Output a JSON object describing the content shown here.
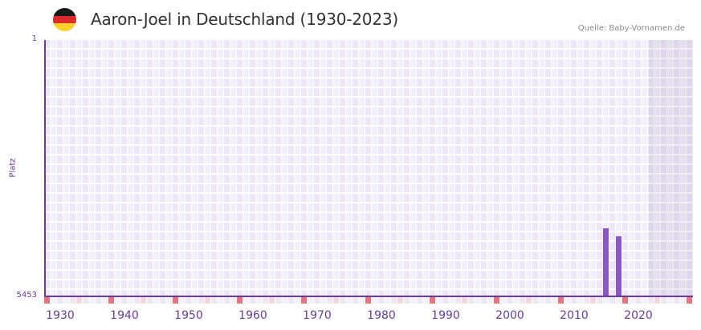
{
  "header": {
    "title": "Aaron-Joel in Deutschland (1930-2023)",
    "source": "Quelle: Baby-Vornamen.de",
    "flag_icon": "germany-flag-icon",
    "flag_colors": [
      "#1a1a1a",
      "#dd2a2a",
      "#fcd12a"
    ]
  },
  "colors": {
    "axis": "#6a3d9a",
    "bar": "#8c55c8",
    "grid_a": "#ece6f8",
    "grid_b": "#f3effb",
    "decade_marker": "#e57380",
    "half_decade_marker": "#f5d5de",
    "future_shade": "#e2dced"
  },
  "chart_data": {
    "type": "bar",
    "title": "Aaron-Joel in Deutschland (1930-2023)",
    "xlabel": "",
    "ylabel": "Platz",
    "y_axis_inverted": true,
    "ylim": [
      5453,
      1
    ],
    "y_ticks": [
      "1",
      "5453"
    ],
    "x_range": [
      1928,
      2028
    ],
    "x_ticks": [
      "1930",
      "1940",
      "1950",
      "1960",
      "1970",
      "1980",
      "1990",
      "2000",
      "2010",
      "2020"
    ],
    "grid": true,
    "shaded_from_year": 2022,
    "categories": [
      "2015",
      "2017"
    ],
    "values": [
      4005,
      4175
    ],
    "series": [
      {
        "name": "Platz",
        "x": [
          2015,
          2017
        ],
        "values": [
          4005,
          4175
        ]
      }
    ]
  },
  "axis": {
    "ytitle": "Platz",
    "ytop": "1",
    "ybottom": "5453",
    "xlabels": [
      {
        "label": "1930",
        "year": 1930
      },
      {
        "label": "1940",
        "year": 1940
      },
      {
        "label": "1950",
        "year": 1950
      },
      {
        "label": "1960",
        "year": 1960
      },
      {
        "label": "1970",
        "year": 1970
      },
      {
        "label": "1980",
        "year": 1980
      },
      {
        "label": "1990",
        "year": 1990
      },
      {
        "label": "2000",
        "year": 2000
      },
      {
        "label": "2010",
        "year": 2010
      },
      {
        "label": "2020",
        "year": 2020
      }
    ]
  }
}
